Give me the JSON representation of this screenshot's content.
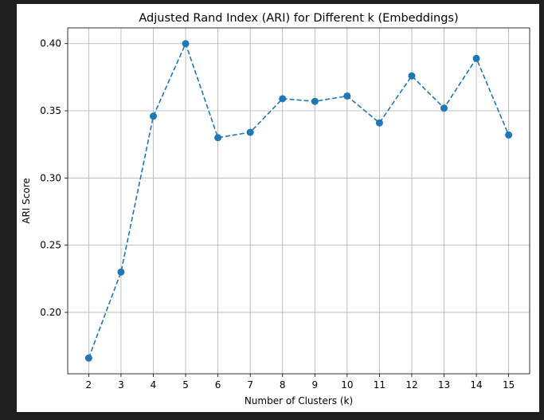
{
  "chart_data": {
    "type": "line",
    "title": "Adjusted Rand Index (ARI) for Different k (Embeddings)",
    "xlabel": "Number of Clusters (k)",
    "ylabel": "ARI Score",
    "x": [
      2,
      3,
      4,
      5,
      6,
      7,
      8,
      9,
      10,
      11,
      12,
      13,
      14,
      15
    ],
    "series": [
      {
        "values": [
          0.166,
          0.23,
          0.346,
          0.4,
          0.33,
          0.334,
          0.359,
          0.357,
          0.361,
          0.341,
          0.376,
          0.352,
          0.389,
          0.332
        ],
        "color": "#1f77b4",
        "line_style": "dashed",
        "marker": "circle"
      }
    ],
    "xlim": [
      1.35,
      15.65
    ],
    "ylim": [
      0.1543,
      0.4117
    ],
    "xticks": [
      "2",
      "3",
      "4",
      "5",
      "6",
      "7",
      "8",
      "9",
      "10",
      "11",
      "12",
      "13",
      "14",
      "15"
    ],
    "yticks": [
      "0.20",
      "0.25",
      "0.30",
      "0.35",
      "0.40"
    ],
    "grid": true,
    "legend": false
  }
}
